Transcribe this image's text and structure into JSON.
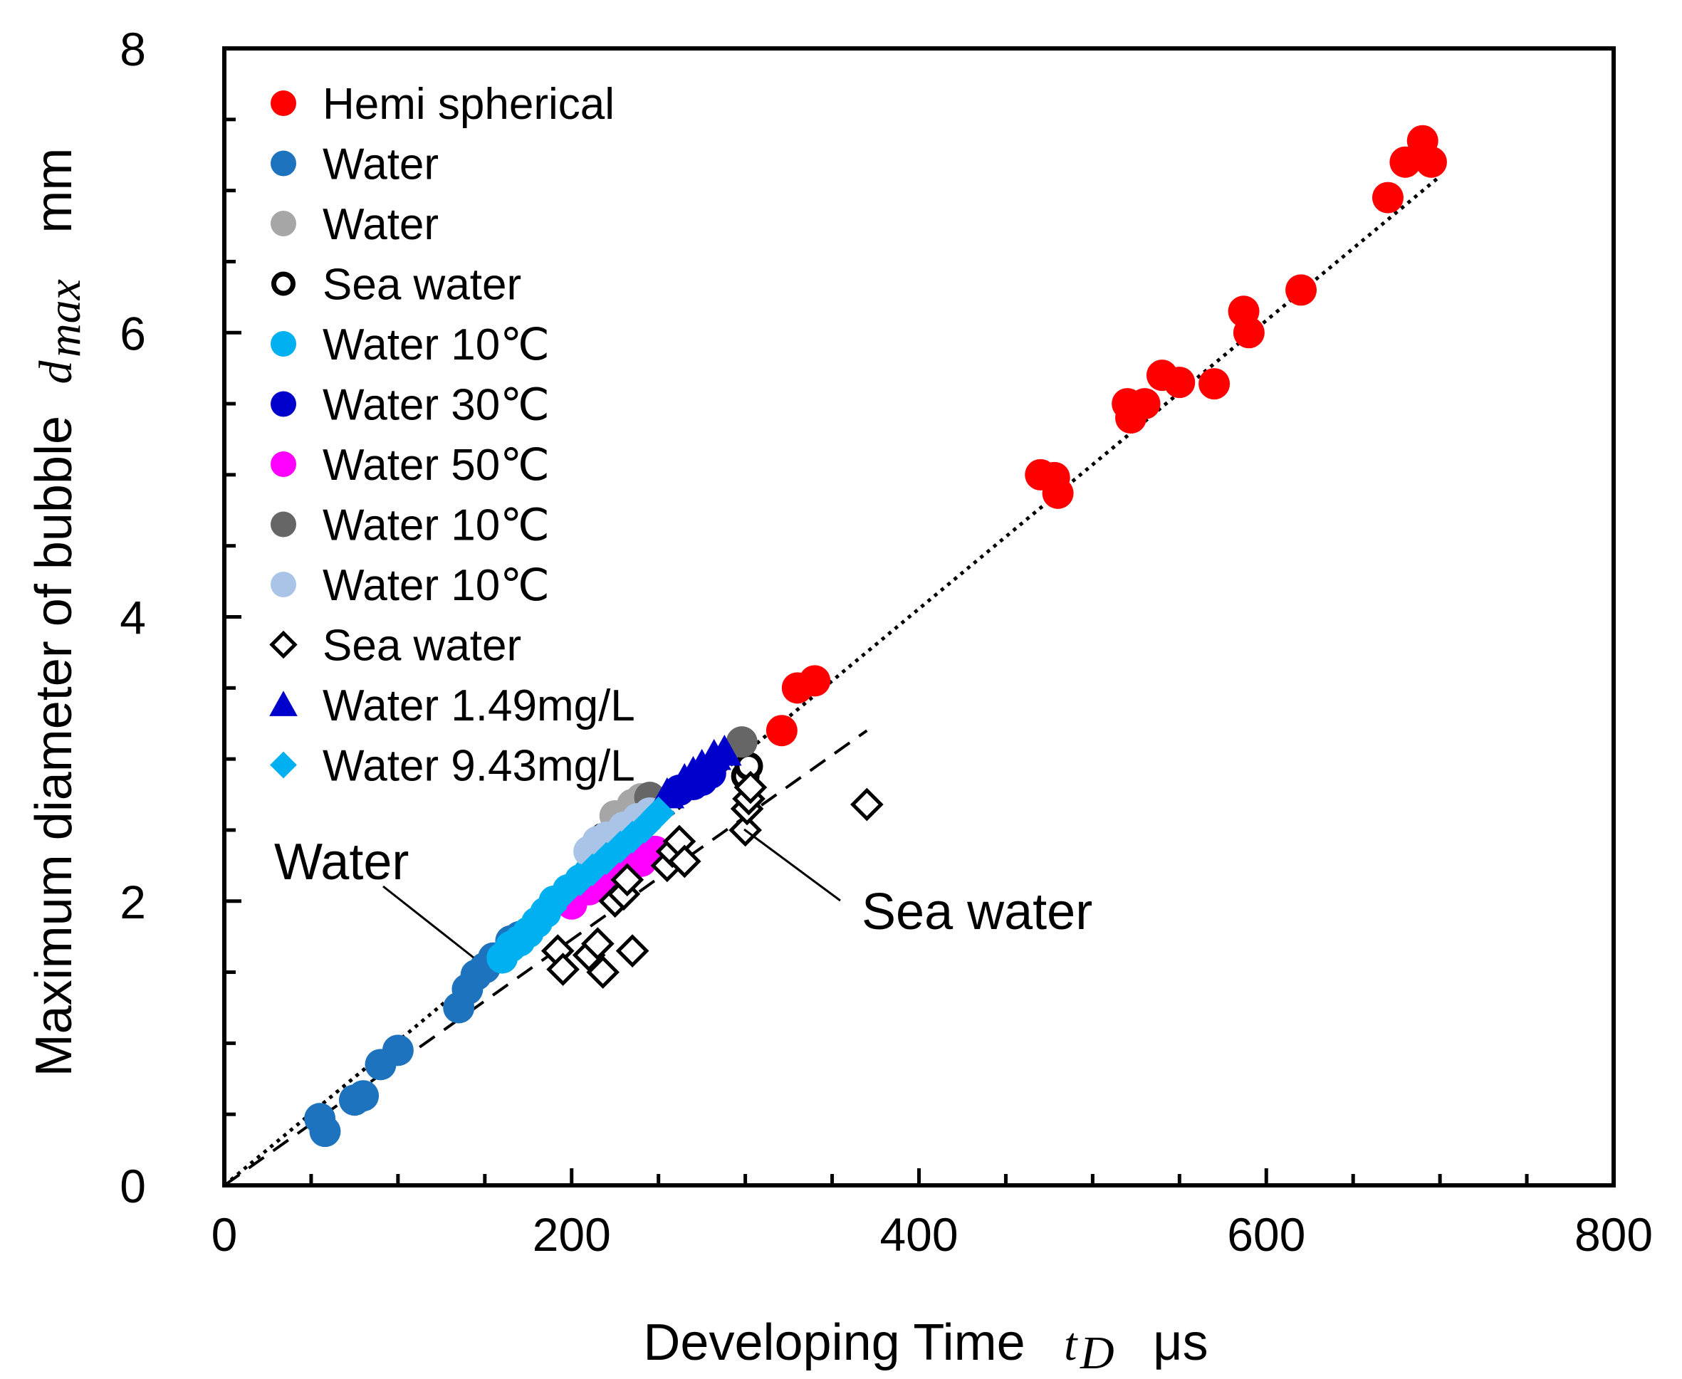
{
  "chart_data": {
    "type": "scatter",
    "xlabel": {
      "text": "Developing Time",
      "symbol": "t",
      "subscript": "D",
      "unit": "μs"
    },
    "ylabel": {
      "text": "Maximum diameter of bubble",
      "symbol": "d",
      "subscript": "max",
      "unit": "mm"
    },
    "xlim": [
      0,
      800
    ],
    "ylim": [
      0,
      8
    ],
    "xticks": [
      0,
      200,
      400,
      600,
      800
    ],
    "yticks": [
      0,
      2,
      4,
      6,
      8
    ],
    "grid": false,
    "legend_position": "top-left",
    "series": [
      {
        "name": "Hemi spherical",
        "marker": "circle",
        "color": "#ff0000",
        "points": [
          [
            321,
            3.2
          ],
          [
            330,
            3.5
          ],
          [
            340,
            3.55
          ],
          [
            470,
            5.0
          ],
          [
            478,
            4.98
          ],
          [
            480,
            4.87
          ],
          [
            520,
            5.5
          ],
          [
            522,
            5.4
          ],
          [
            530,
            5.5
          ],
          [
            540,
            5.7
          ],
          [
            550,
            5.65
          ],
          [
            570,
            5.64
          ],
          [
            587,
            6.15
          ],
          [
            590,
            6.0
          ],
          [
            620,
            6.3
          ],
          [
            670,
            6.95
          ],
          [
            680,
            7.2
          ],
          [
            690,
            7.35
          ],
          [
            695,
            7.2
          ]
        ]
      },
      {
        "name": "Water",
        "marker": "circle",
        "color": "#1e73be",
        "points": [
          [
            55,
            0.47
          ],
          [
            58,
            0.38
          ],
          [
            75,
            0.6
          ],
          [
            80,
            0.63
          ],
          [
            90,
            0.85
          ],
          [
            100,
            0.95
          ],
          [
            135,
            1.25
          ],
          [
            140,
            1.38
          ],
          [
            145,
            1.48
          ],
          [
            150,
            1.53
          ],
          [
            155,
            1.6
          ],
          [
            165,
            1.72
          ],
          [
            170,
            1.75
          ]
        ]
      },
      {
        "name": "Water",
        "marker": "circle",
        "color": "#a6a6a6",
        "points": [
          [
            225,
            2.6
          ],
          [
            235,
            2.68
          ],
          [
            240,
            2.72
          ]
        ]
      },
      {
        "name": "Sea water",
        "marker": "circle-open",
        "color": "#000000",
        "points": [
          [
            218,
            2.45
          ],
          [
            300,
            2.88
          ],
          [
            302,
            2.95
          ]
        ]
      },
      {
        "name": "Water 10℃",
        "marker": "circle",
        "color": "#00b0f0",
        "points": [
          [
            160,
            1.6
          ],
          [
            165,
            1.68
          ],
          [
            170,
            1.72
          ],
          [
            175,
            1.78
          ],
          [
            180,
            1.85
          ],
          [
            185,
            1.92
          ],
          [
            190,
            2.0
          ],
          [
            198,
            2.08
          ],
          [
            205,
            2.15
          ],
          [
            210,
            2.2
          ]
        ]
      },
      {
        "name": "Water 30℃",
        "marker": "circle",
        "color": "#0000cc",
        "points": [
          [
            262,
            2.78
          ],
          [
            270,
            2.82
          ],
          [
            275,
            2.85
          ],
          [
            280,
            2.9
          ]
        ]
      },
      {
        "name": "Water 50℃",
        "marker": "circle",
        "color": "#ff00ff",
        "points": [
          [
            200,
            1.98
          ],
          [
            210,
            2.08
          ],
          [
            215,
            2.12
          ],
          [
            225,
            2.18
          ],
          [
            230,
            2.22
          ],
          [
            240,
            2.28
          ],
          [
            248,
            2.35
          ]
        ]
      },
      {
        "name": "Water 10℃",
        "marker": "circle",
        "color": "#666666",
        "points": [
          [
            298,
            3.12
          ],
          [
            245,
            2.73
          ]
        ]
      },
      {
        "name": "Water 10℃",
        "marker": "circle",
        "color": "#a9c4e6",
        "points": [
          [
            210,
            2.35
          ],
          [
            215,
            2.42
          ],
          [
            220,
            2.45
          ],
          [
            230,
            2.52
          ],
          [
            238,
            2.58
          ],
          [
            245,
            2.62
          ]
        ]
      },
      {
        "name": "Sea water",
        "marker": "diamond-open",
        "color": "#000000",
        "points": [
          [
            192,
            1.65
          ],
          [
            195,
            1.52
          ],
          [
            210,
            1.62
          ],
          [
            215,
            1.7
          ],
          [
            218,
            1.5
          ],
          [
            235,
            1.65
          ],
          [
            225,
            2.0
          ],
          [
            230,
            2.05
          ],
          [
            232,
            2.15
          ],
          [
            255,
            2.25
          ],
          [
            258,
            2.35
          ],
          [
            262,
            2.42
          ],
          [
            265,
            2.28
          ],
          [
            300,
            2.5
          ],
          [
            301,
            2.65
          ],
          [
            302,
            2.72
          ],
          [
            303,
            2.8
          ],
          [
            370,
            2.68
          ]
        ]
      },
      {
        "name": "Water 1.49mg/L",
        "marker": "triangle",
        "color": "#0000cc",
        "points": [
          [
            255,
            2.75
          ],
          [
            265,
            2.85
          ],
          [
            270,
            2.9
          ],
          [
            275,
            2.95
          ],
          [
            282,
            3.02
          ],
          [
            288,
            3.05
          ]
        ]
      },
      {
        "name": "Water 9.43mg/L",
        "marker": "diamond",
        "color": "#00b0f0",
        "points": [
          [
            165,
            1.7
          ],
          [
            172,
            1.76
          ],
          [
            180,
            1.85
          ],
          [
            188,
            1.95
          ],
          [
            195,
            2.05
          ],
          [
            205,
            2.15
          ],
          [
            212,
            2.22
          ],
          [
            220,
            2.3
          ],
          [
            228,
            2.38
          ],
          [
            235,
            2.45
          ],
          [
            242,
            2.52
          ],
          [
            250,
            2.62
          ]
        ]
      }
    ],
    "fit_lines": [
      {
        "label": "Water",
        "style": "dotted",
        "x": [
          0,
          700
        ],
        "y": [
          0,
          7.1
        ]
      },
      {
        "label": "Sea water",
        "style": "dashed",
        "x": [
          0,
          370
        ],
        "y": [
          0,
          3.2
        ]
      }
    ],
    "annotations": [
      {
        "text": "Water",
        "target": "dotted-line"
      },
      {
        "text": "Sea water",
        "target": "dashed-line"
      }
    ]
  }
}
